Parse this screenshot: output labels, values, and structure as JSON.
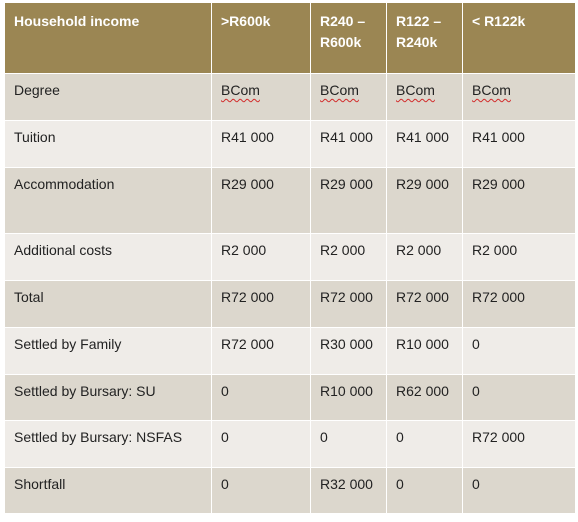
{
  "table": {
    "headers": [
      "Household income",
      ">R600k",
      "R240 – R600k",
      "R122 – R240k",
      "< R122k"
    ],
    "rows": [
      {
        "label": "Degree",
        "cells": [
          "BCom",
          "BCom",
          "BCom",
          "BCom"
        ]
      },
      {
        "label": "Tuition",
        "cells": [
          "R41 000",
          "R41 000",
          "R41 000",
          "R41 000"
        ]
      },
      {
        "label": "Accommodation",
        "cells": [
          "R29 000",
          "R29 000",
          "R29 000",
          "R29 000"
        ]
      },
      {
        "label": "Additional costs",
        "cells": [
          "R2 000",
          "R2 000",
          "R2 000",
          "R2 000"
        ]
      },
      {
        "label": "Total",
        "cells": [
          "R72 000",
          "R72 000",
          "R72 000",
          "R72 000"
        ]
      },
      {
        "label": "Settled by Family",
        "cells": [
          "R72 000",
          "R30 000",
          "R10 000",
          "0"
        ]
      },
      {
        "label": "Settled by Bursary: SU",
        "cells": [
          "0",
          "R10 000",
          "R62 000",
          "0"
        ]
      },
      {
        "label": "Settled by Bursary: NSFAS",
        "cells": [
          "0",
          "0",
          "0",
          "R72 000"
        ]
      },
      {
        "label": "Shortfall",
        "cells": [
          "0",
          "R32 000",
          "0",
          "0"
        ]
      }
    ]
  }
}
